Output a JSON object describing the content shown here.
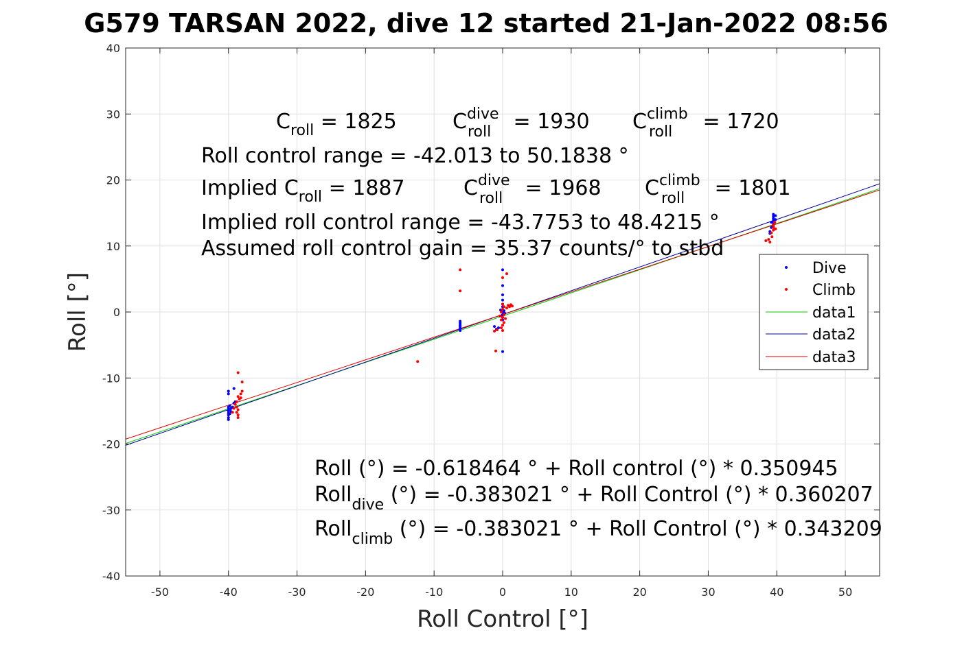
{
  "chart_data": {
    "type": "scatter",
    "title": "G579 TARSAN 2022, dive 12 started 21-Jan-2022 08:56",
    "xlabel": "Roll Control [°]",
    "ylabel": "Roll [°]",
    "xlim": [
      -55,
      55
    ],
    "ylim": [
      -40,
      40
    ],
    "xticks": [
      -50,
      -40,
      -30,
      -20,
      -10,
      0,
      10,
      20,
      30,
      40,
      50
    ],
    "yticks": [
      -40,
      -30,
      -20,
      -10,
      0,
      10,
      20,
      30,
      40
    ],
    "grid": true,
    "legend_placement": "right",
    "colors": {
      "dive": "#0000ff",
      "climb": "#ff0000",
      "data1": "#00cc00",
      "data2": "#000099",
      "data3": "#dd0000"
    },
    "series": [
      {
        "name": "Dive",
        "kind": "points",
        "points": [
          [
            -40,
            -12
          ],
          [
            -40,
            -12.4
          ],
          [
            -40,
            -14.4
          ],
          [
            -40,
            -14.7
          ],
          [
            -40,
            -15
          ],
          [
            -40,
            -15.3
          ],
          [
            -40,
            -15.6
          ],
          [
            -40,
            -16
          ],
          [
            -40,
            -16.3
          ],
          [
            -39.8,
            -14.2
          ],
          [
            -39.8,
            -14.8
          ],
          [
            -39.8,
            -15.4
          ],
          [
            -39.6,
            -14.6
          ],
          [
            -39.6,
            -15.1
          ],
          [
            -39.4,
            -14.4
          ],
          [
            -39.2,
            -11.6
          ],
          [
            -39.2,
            -13.8
          ],
          [
            -39,
            -13.6
          ],
          [
            -6.2,
            -1.4
          ],
          [
            -6.2,
            -1.6
          ],
          [
            -6.2,
            -1.8
          ],
          [
            -6.2,
            -2
          ],
          [
            -6.2,
            -2.2
          ],
          [
            -6.2,
            -2.4
          ],
          [
            -6.2,
            -2.6
          ],
          [
            -6.2,
            -2.8
          ],
          [
            0,
            6.4
          ],
          [
            0,
            4
          ],
          [
            0,
            2.6
          ],
          [
            0,
            1.8
          ],
          [
            0,
            1.2
          ],
          [
            0,
            0.8
          ],
          [
            0,
            0.4
          ],
          [
            0,
            0
          ],
          [
            0,
            -0.4
          ],
          [
            0,
            -0.8
          ],
          [
            0,
            -1.2
          ],
          [
            -0.2,
            -0.6
          ],
          [
            0.2,
            0.2
          ],
          [
            0.3,
            -0.2
          ],
          [
            -0.3,
            0.3
          ],
          [
            0,
            -6
          ],
          [
            -1.2,
            -2.2
          ],
          [
            -0.9,
            -2.6
          ],
          [
            -0.6,
            -2.4
          ],
          [
            39.5,
            14.8
          ],
          [
            39.5,
            14.5
          ],
          [
            39.5,
            14.2
          ],
          [
            39.5,
            13.9
          ],
          [
            39.5,
            13.6
          ],
          [
            39.5,
            13.3
          ],
          [
            39.5,
            13
          ],
          [
            39.8,
            14.6
          ],
          [
            39.8,
            14
          ],
          [
            39.2,
            13.6
          ],
          [
            39.2,
            12.8
          ],
          [
            39,
            12.2
          ],
          [
            39,
            11.9
          ]
        ]
      },
      {
        "name": "Climb",
        "kind": "points",
        "points": [
          [
            -38.6,
            -9.2
          ],
          [
            -38,
            -10.6
          ],
          [
            -38,
            -12
          ],
          [
            -38.2,
            -12.4
          ],
          [
            -38.6,
            -12.8
          ],
          [
            -38.4,
            -13.2
          ],
          [
            -38.8,
            -13.6
          ],
          [
            -39,
            -14
          ],
          [
            -38.8,
            -14.4
          ],
          [
            -38.6,
            -14.8
          ],
          [
            -38.8,
            -15.2
          ],
          [
            -38.6,
            -15.6
          ],
          [
            -38.6,
            -16
          ],
          [
            -39.2,
            -14.6
          ],
          [
            -39.4,
            -15.2
          ],
          [
            -38.2,
            -13
          ],
          [
            -6.2,
            6.4
          ],
          [
            -6.2,
            3.2
          ],
          [
            -12.4,
            -7.5
          ],
          [
            -1,
            -5.9
          ],
          [
            0,
            5.2
          ],
          [
            0.6,
            5.8
          ],
          [
            0,
            1.2
          ],
          [
            0.2,
            0.8
          ],
          [
            0,
            0.4
          ],
          [
            -0.2,
            0
          ],
          [
            0.2,
            -0.4
          ],
          [
            0,
            -0.8
          ],
          [
            -0.2,
            -1.2
          ],
          [
            0.2,
            -1.6
          ],
          [
            0,
            -2
          ],
          [
            -0.2,
            -2.4
          ],
          [
            0,
            -2.8
          ],
          [
            0.4,
            -1
          ],
          [
            -0.4,
            -0.6
          ],
          [
            -0.8,
            -2.7
          ],
          [
            -1.2,
            -2.9
          ],
          [
            0.8,
            1
          ],
          [
            1,
            0.8
          ],
          [
            1.2,
            1.1
          ],
          [
            0.6,
            0.6
          ],
          [
            1.4,
            0.9
          ],
          [
            39.5,
            12.4
          ],
          [
            39.5,
            12.8
          ],
          [
            39.5,
            13.2
          ],
          [
            39.7,
            13.6
          ],
          [
            39.2,
            12
          ],
          [
            39.3,
            11.4
          ],
          [
            38.8,
            11
          ],
          [
            38.4,
            10.8
          ],
          [
            39,
            10.6
          ],
          [
            39.8,
            12.6
          ]
        ]
      },
      {
        "name": "data1",
        "kind": "line",
        "intercept": -0.618464,
        "slope": 0.350945
      },
      {
        "name": "data2",
        "kind": "line",
        "intercept": -0.383021,
        "slope": 0.360207
      },
      {
        "name": "data3",
        "kind": "line",
        "intercept": -0.383021,
        "slope": 0.343209
      }
    ],
    "annotations_top": {
      "line1": {
        "a_main": "C",
        "a_sub": "roll",
        "a_rest": " = 1825",
        "b_main": "C",
        "b_sup": "dive",
        "b_sub": "roll",
        "b_rest": " = 1930",
        "c_main": "C",
        "c_sup": "climb",
        "c_sub": "roll",
        "c_rest": " = 1720"
      },
      "line2": "Roll control range = -42.013 to 50.1838 °",
      "line3": {
        "prefix": "Implied C",
        "a_sub": "roll",
        "a_rest": " = 1887",
        "b_main": "C",
        "b_sup": "dive",
        "b_sub": "roll",
        "b_rest": " = 1968",
        "c_main": "C",
        "c_sup": "climb",
        "c_sub": "roll",
        "c_rest": " = 1801"
      },
      "line4": "Implied roll control range = -43.7753 to 48.4215 °",
      "line5": "Assumed roll control gain = 35.37 counts/° to stbd"
    },
    "annotations_bottom": {
      "line1": "Roll (°) = -0.618464 ° + Roll control (°) * 0.350945",
      "line2": {
        "main": "Roll",
        "sub": "dive",
        "rest": " (°) = -0.383021 ° + Roll Control (°) * 0.360207"
      },
      "line3": {
        "main": "Roll",
        "sub": "climb",
        "rest": " (°) = -0.383021 ° + Roll Control (°) * 0.343209"
      }
    }
  }
}
